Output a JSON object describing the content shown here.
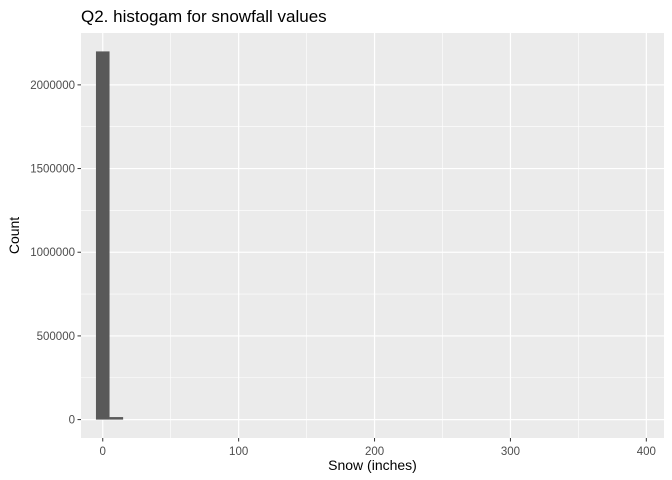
{
  "chart_data": {
    "type": "bar",
    "title": "Q2. histogam for snowfall values",
    "xlabel": "Snow (inches)",
    "ylabel": "Count",
    "xlim": [
      -16,
      413
    ],
    "ylim": [
      -110000,
      2310000
    ],
    "x_ticks": [
      0,
      100,
      200,
      300,
      400
    ],
    "x_tick_labels": [
      "0",
      "100",
      "200",
      "300",
      "400"
    ],
    "y_ticks": [
      0,
      500000,
      1000000,
      1500000,
      2000000
    ],
    "y_tick_labels": [
      "0",
      "500000",
      "1000000",
      "1500000",
      "2000000"
    ],
    "bin_width": 10,
    "bins": [
      {
        "x_min": -5,
        "x_max": 5,
        "count": 2200000
      },
      {
        "x_min": 5,
        "x_max": 15,
        "count": 15000
      }
    ],
    "grid": true,
    "colors": {
      "panel_background": "#ebebeb",
      "grid_major": "#ffffff",
      "bar_fill": "#595959",
      "tick_label": "#4d4d4d"
    }
  }
}
